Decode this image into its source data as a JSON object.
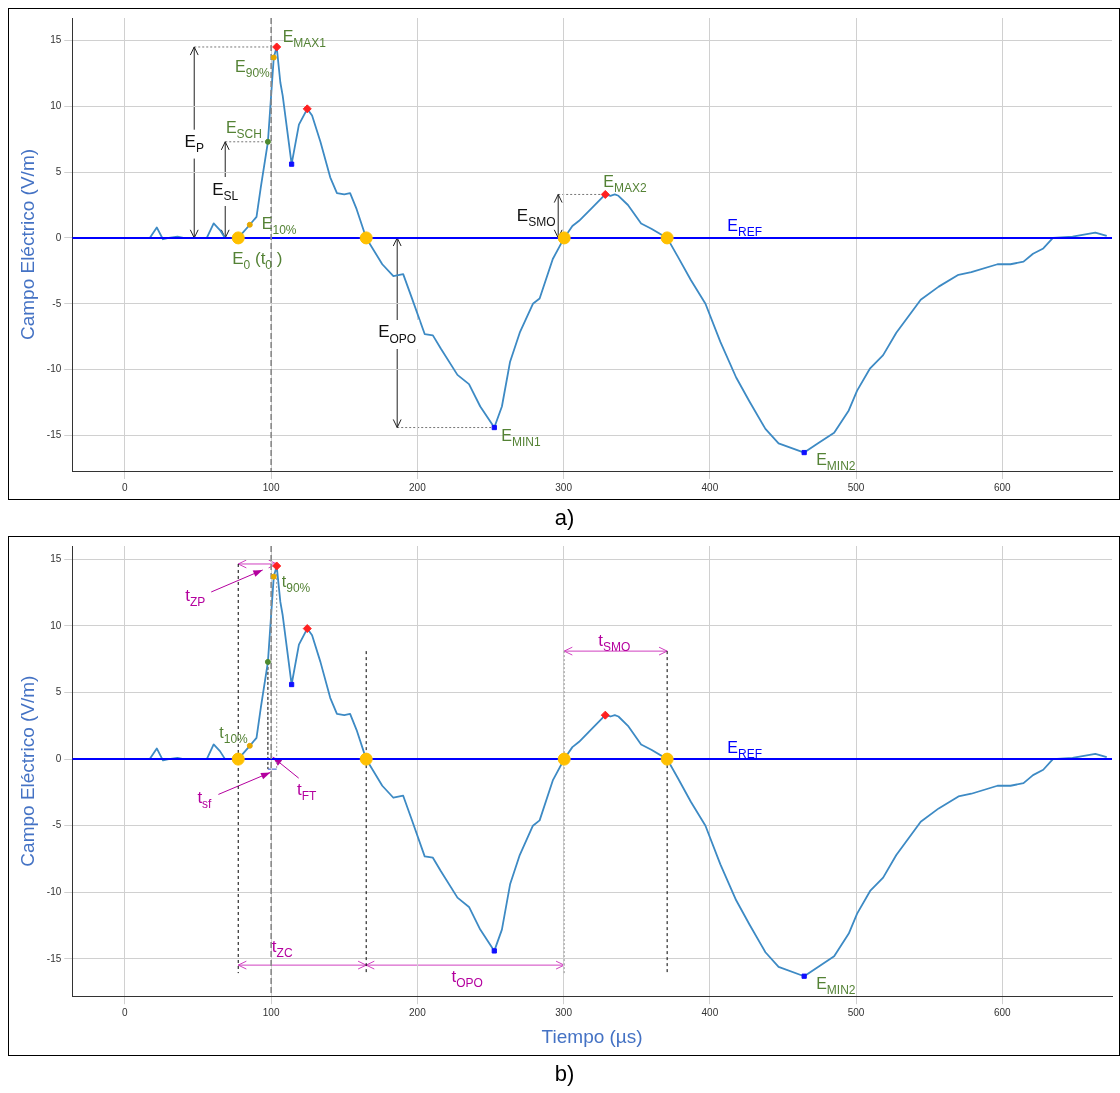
{
  "chart_data": [
    {
      "type": "line",
      "ylabel": "Campo Eléctrico (V/m)",
      "x": [
        0,
        17,
        21.8,
        26,
        30,
        36,
        40,
        56,
        60.7,
        65,
        68.5,
        77.5,
        85.4,
        90,
        93,
        97.8,
        101.8,
        103.8,
        106.3,
        107.9,
        114,
        119,
        124.7,
        128,
        133.7,
        140.4,
        145,
        150,
        154,
        158.4,
        165,
        176,
        183.6,
        190.3,
        196,
        205,
        210.6,
        216,
        227.4,
        235.3,
        243,
        252.6,
        257.8,
        263.4,
        270,
        279,
        283.6,
        292.6,
        300.4,
        306,
        310.6,
        319.6,
        328.5,
        332,
        335,
        337.5,
        344,
        353,
        360,
        370.8,
        378,
        387,
        397,
        407.2,
        418,
        427,
        438,
        447,
        464.5,
        474,
        485,
        495,
        500.7,
        509.6,
        518.5,
        527.5,
        544.2,
        556.5,
        570,
        578.8,
        596.7,
        605.6,
        614.5,
        621,
        628,
        634.6,
        648,
        663.6,
        671.4
      ],
      "series": [
        {
          "color": "#3d8ac4",
          "values": [
            0,
            0,
            0.8,
            -0.1,
            0,
            0.1,
            0,
            0,
            1.1,
            0.6,
            0,
            0,
            1.0,
            1.6,
            3.9,
            7.3,
            13.7,
            14.5,
            11.8,
            10.8,
            5.6,
            8.6,
            9.8,
            9.3,
            7.3,
            4.6,
            3.4,
            3.3,
            3.4,
            2.2,
            0,
            -2.0,
            -2.9,
            -2.75,
            -4.5,
            -7.3,
            -7.4,
            -8.4,
            -10.4,
            -11.1,
            -12.8,
            -14.4,
            -12.8,
            -9.4,
            -7.2,
            -5.0,
            -4.6,
            -1.6,
            0,
            0.9,
            1.3,
            2.3,
            3.3,
            3.2,
            3.3,
            3.2,
            2.5,
            1.1,
            0.7,
            0,
            -1.4,
            -3.2,
            -5.0,
            -7.9,
            -10.6,
            -12.4,
            -14.5,
            -15.6,
            -16.3,
            -15.6,
            -14.8,
            -13.1,
            -11.6,
            -9.9,
            -8.9,
            -7.2,
            -4.7,
            -3.7,
            -2.8,
            -2.6,
            -2.0,
            -2.0,
            -1.8,
            -1.2,
            -0.8,
            0,
            0.1,
            0.4,
            0.15
          ]
        },
        {
          "type": "scatter",
          "marker": "circle",
          "color": "#ffc000",
          "x": [
            77.5,
            165,
            300.4,
            370.8
          ],
          "values": [
            0,
            0,
            0,
            0
          ]
        },
        {
          "type": "scatter",
          "marker": "circle",
          "color": "#e6a800",
          "x": [
            85.4,
            101.8
          ],
          "values": [
            1.0,
            13.7
          ]
        },
        {
          "type": "scatter",
          "marker": "circle",
          "color": "#4e8a2e",
          "x": [
            97.8
          ],
          "values": [
            7.3
          ]
        },
        {
          "type": "scatter",
          "marker": "diamond",
          "color": "#ff2020",
          "x": [
            103.8,
            124.7,
            328.5
          ],
          "values": [
            14.5,
            9.8,
            3.3
          ]
        },
        {
          "type": "scatter",
          "marker": "square",
          "color": "#1010ff",
          "x": [
            114,
            252.6,
            464.5
          ],
          "values": [
            5.6,
            -14.4,
            -16.3
          ]
        }
      ],
      "xlim": [
        -36,
        675
      ],
      "ylim": [
        -17.7,
        16.7
      ],
      "xticks": [
        0,
        100,
        200,
        300,
        400,
        500,
        600
      ],
      "yticks": [
        -15,
        -10,
        -5,
        0,
        5,
        10,
        15
      ],
      "grid": true,
      "legend": false,
      "marker": "none",
      "ref_lines": [
        {
          "axis": "y",
          "value": 0,
          "label": "E$_{REF}$",
          "color": "#0000ff"
        },
        {
          "axis": "x",
          "value": 100,
          "label": null,
          "color": "#888888",
          "line_style": "dashed"
        }
      ],
      "annotations": [
        {
          "text": "E$_{MAX1}$",
          "x": 103.8,
          "y": 14.5
        },
        {
          "text": "E$_{90%}$",
          "x": 101.8,
          "y": 13.7
        },
        {
          "text": "E$_{SCH}$",
          "x": 97.8,
          "y": 7.3
        },
        {
          "text": "E$_{10%}$",
          "x": 85.4,
          "y": 1.0
        },
        {
          "text": "E$_{0}$ (t$_{0}$ )",
          "x": 77.5,
          "y": 0
        },
        {
          "text": "E$_{MAX2}$",
          "x": 328.5,
          "y": 3.3
        },
        {
          "text": "E$_{MIN1}$",
          "x": 252.6,
          "y": -14.4
        },
        {
          "text": "E$_{MIN2}$",
          "x": 464.5,
          "y": -16.3
        },
        "E$_{P}$",
        "E$_{SL}$",
        "E$_{OPO}$",
        "E$_{SMO}$",
        "a)"
      ]
    },
    {
      "type": "line",
      "xlabel": "Tiempo (µs)",
      "ylabel": "Campo Eléctrico (V/m)",
      "x": [
        0,
        17,
        21.8,
        26,
        30,
        36,
        40,
        56,
        60.7,
        65,
        68.5,
        77.5,
        85.4,
        90,
        93,
        97.8,
        101.8,
        103.8,
        106.3,
        107.9,
        114,
        119,
        124.7,
        128,
        133.7,
        140.4,
        145,
        150,
        154,
        158.4,
        165,
        176,
        183.6,
        190.3,
        196,
        205,
        210.6,
        216,
        227.4,
        235.3,
        243,
        252.6,
        257.8,
        263.4,
        270,
        279,
        283.6,
        292.6,
        300.4,
        306,
        310.6,
        319.6,
        328.5,
        332,
        335,
        337.5,
        344,
        353,
        360,
        370.8,
        378,
        387,
        397,
        407.2,
        418,
        427,
        438,
        447,
        464.5,
        474,
        485,
        495,
        500.7,
        509.6,
        518.5,
        527.5,
        544.2,
        556.5,
        570,
        578.8,
        596.7,
        605.6,
        614.5,
        621,
        628,
        634.6,
        648,
        663.6,
        671.4
      ],
      "series": [
        {
          "color": "#3d8ac4",
          "values": [
            0,
            0,
            0.8,
            -0.1,
            0,
            0.1,
            0,
            0,
            1.1,
            0.6,
            0,
            0,
            1.0,
            1.6,
            3.9,
            7.3,
            13.7,
            14.5,
            11.8,
            10.8,
            5.6,
            8.6,
            9.8,
            9.3,
            7.3,
            4.6,
            3.4,
            3.3,
            3.4,
            2.2,
            0,
            -2.0,
            -2.9,
            -2.75,
            -4.5,
            -7.3,
            -7.4,
            -8.4,
            -10.4,
            -11.1,
            -12.8,
            -14.4,
            -12.8,
            -9.4,
            -7.2,
            -5.0,
            -4.6,
            -1.6,
            0,
            0.9,
            1.3,
            2.3,
            3.3,
            3.2,
            3.3,
            3.2,
            2.5,
            1.1,
            0.7,
            0,
            -1.4,
            -3.2,
            -5.0,
            -7.9,
            -10.6,
            -12.4,
            -14.5,
            -15.6,
            -16.3,
            -15.6,
            -14.8,
            -13.1,
            -11.6,
            -9.9,
            -8.9,
            -7.2,
            -4.7,
            -3.7,
            -2.8,
            -2.6,
            -2.0,
            -2.0,
            -1.8,
            -1.2,
            -0.8,
            0,
            0.1,
            0.4,
            0.15
          ]
        },
        {
          "type": "scatter",
          "marker": "circle",
          "color": "#ffc000",
          "x": [
            77.5,
            165,
            300.4,
            370.8
          ],
          "values": [
            0,
            0,
            0,
            0
          ]
        },
        {
          "type": "scatter",
          "marker": "circle",
          "color": "#e6a800",
          "x": [
            85.4,
            101.8
          ],
          "values": [
            1.0,
            13.7
          ]
        },
        {
          "type": "scatter",
          "marker": "circle",
          "color": "#4e8a2e",
          "x": [
            97.8
          ],
          "values": [
            7.3
          ]
        },
        {
          "type": "scatter",
          "marker": "diamond",
          "color": "#ff2020",
          "x": [
            103.8,
            124.7,
            328.5
          ],
          "values": [
            14.5,
            9.8,
            3.3
          ]
        },
        {
          "type": "scatter",
          "marker": "square",
          "color": "#1010ff",
          "x": [
            114,
            252.6,
            464.5
          ],
          "values": [
            5.6,
            -14.4,
            -16.3
          ]
        }
      ],
      "xlim": [
        -36,
        675
      ],
      "ylim": [
        -17.8,
        16
      ],
      "xticks": [
        0,
        100,
        200,
        300,
        400,
        500,
        600
      ],
      "yticks": [
        -15,
        -10,
        -5,
        0,
        5,
        10,
        15
      ],
      "grid": true,
      "legend": false,
      "marker": "none",
      "ref_lines": [
        {
          "axis": "y",
          "value": 0,
          "label": "E$_{REF}$",
          "color": "#0000ff"
        },
        {
          "axis": "x",
          "value": 100,
          "label": null,
          "color": "#888888",
          "line_style": "dashed"
        },
        {
          "axis": "x",
          "value": 77.5,
          "color": "#000000",
          "line_style": "dashed"
        },
        {
          "axis": "x",
          "value": 165,
          "color": "#000000",
          "line_style": "dashed"
        },
        {
          "axis": "x",
          "value": 300.4,
          "color": "#999999",
          "line_style": "dotted"
        },
        {
          "axis": "x",
          "value": 370.8,
          "color": "#000000",
          "line_style": "dashed"
        }
      ],
      "annotations": [
        {
          "text": "t$_{90%}$",
          "x": 101.8,
          "y": 13.7
        },
        {
          "text": "t$_{10%}$",
          "x": 85.4,
          "y": 1.0
        },
        {
          "text": "E$_{MIN2}$",
          "x": 464.5,
          "y": -16.3
        },
        "t$_{ZP}$",
        {
          "text": "t$_{sf}$",
          "x": 99.5,
          "y": -1.0
        },
        "t$_{FT}$",
        "t$_{ZC}$",
        "t$_{OPO}$",
        "t$_{SMO}$",
        "b)"
      ]
    }
  ]
}
